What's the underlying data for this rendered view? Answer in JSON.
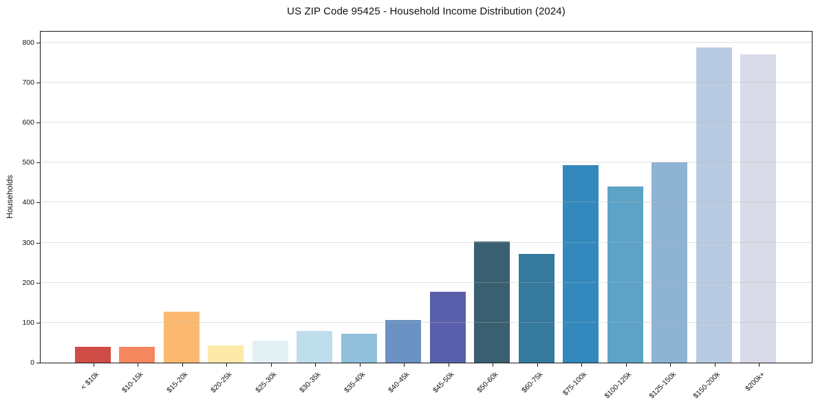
{
  "chart_data": {
    "type": "bar",
    "title": "US ZIP Code 95425 - Household Income Distribution (2024)",
    "xlabel": "",
    "ylabel": "Households",
    "categories": [
      "< $10k",
      "$10-15k",
      "$15-20k",
      "$20-25k",
      "$25-30k",
      "$30-35k",
      "$35-40k",
      "$40-45k",
      "$45-50k",
      "$50-60k",
      "$60-75k",
      "$75-100k",
      "$100-125k",
      "$125-150k",
      "$150-200k",
      "$200k+"
    ],
    "values": [
      40,
      40,
      128,
      43,
      55,
      79,
      72,
      107,
      177,
      302,
      271,
      493,
      441,
      500,
      788,
      770
    ],
    "bar_colors": [
      "#cf4b45",
      "#f5875f",
      "#fab96e",
      "#fde9a8",
      "#e4f1f3",
      "#bfdeec",
      "#90c0dc",
      "#6b92c3",
      "#5a5fab",
      "#3a5f70",
      "#35799d",
      "#3389bd",
      "#5ca3c7",
      "#8eb3d3",
      "#b8cbe2",
      "#d8dae8"
    ],
    "ylim": [
      0,
      827
    ],
    "yticks": [
      0,
      100,
      200,
      300,
      400,
      500,
      600,
      700,
      800
    ],
    "grid": "horizontal",
    "gridline_color": "#e8e8e8",
    "axis_color": "#1a1a1a",
    "background_color": "#ffffff",
    "legend": "none",
    "x_tick_rotation_deg": 45
  }
}
